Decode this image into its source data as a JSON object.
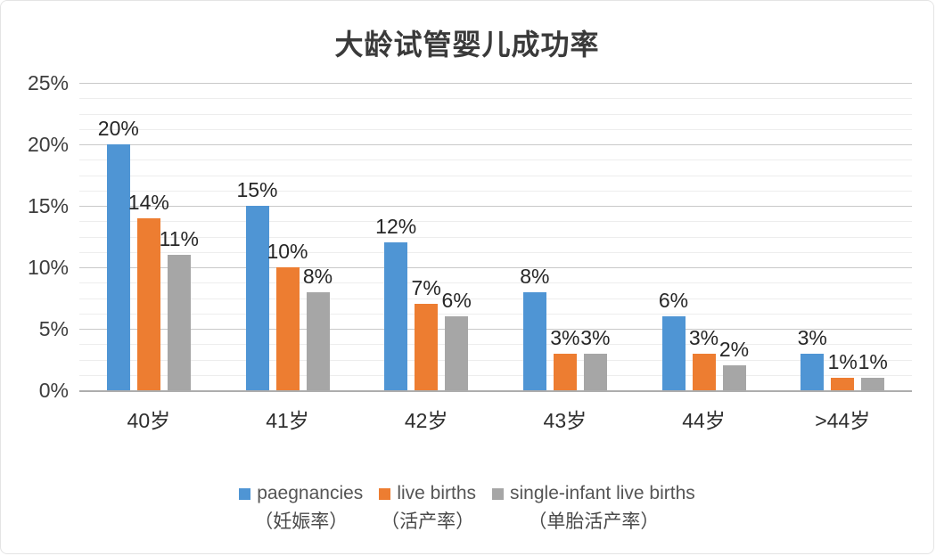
{
  "window": {
    "background": "#ffffff",
    "border_color": "#e4e4e4"
  },
  "chart_data": {
    "type": "bar",
    "title": "大龄试管婴儿成功率",
    "categories": [
      "40岁",
      "41岁",
      "42岁",
      "43岁",
      "44岁",
      ">44岁"
    ],
    "series": [
      {
        "name": "paegnancies",
        "subtitle_zh": "（妊娠率）",
        "color": "#4F95D4",
        "values": [
          20,
          15,
          12,
          8,
          6,
          3
        ]
      },
      {
        "name": "live births",
        "subtitle_zh": "（活产率）",
        "color": "#ED7D31",
        "values": [
          14,
          10,
          7,
          3,
          3,
          1
        ]
      },
      {
        "name": "single-infant live births",
        "subtitle_zh": "（单胎活产率）",
        "color": "#A6A6A6",
        "values": [
          11,
          8,
          6,
          3,
          2,
          1
        ]
      }
    ],
    "xlabel": "",
    "ylabel": "",
    "ylim": [
      0,
      25
    ],
    "y_tick_labels": [
      "0%",
      "5%",
      "10%",
      "15%",
      "20%",
      "25%"
    ],
    "major_step": 5,
    "minor_step": 1.25,
    "grid": true,
    "legend_position": "bottom",
    "data_labels": true,
    "data_label_suffix": "%"
  }
}
